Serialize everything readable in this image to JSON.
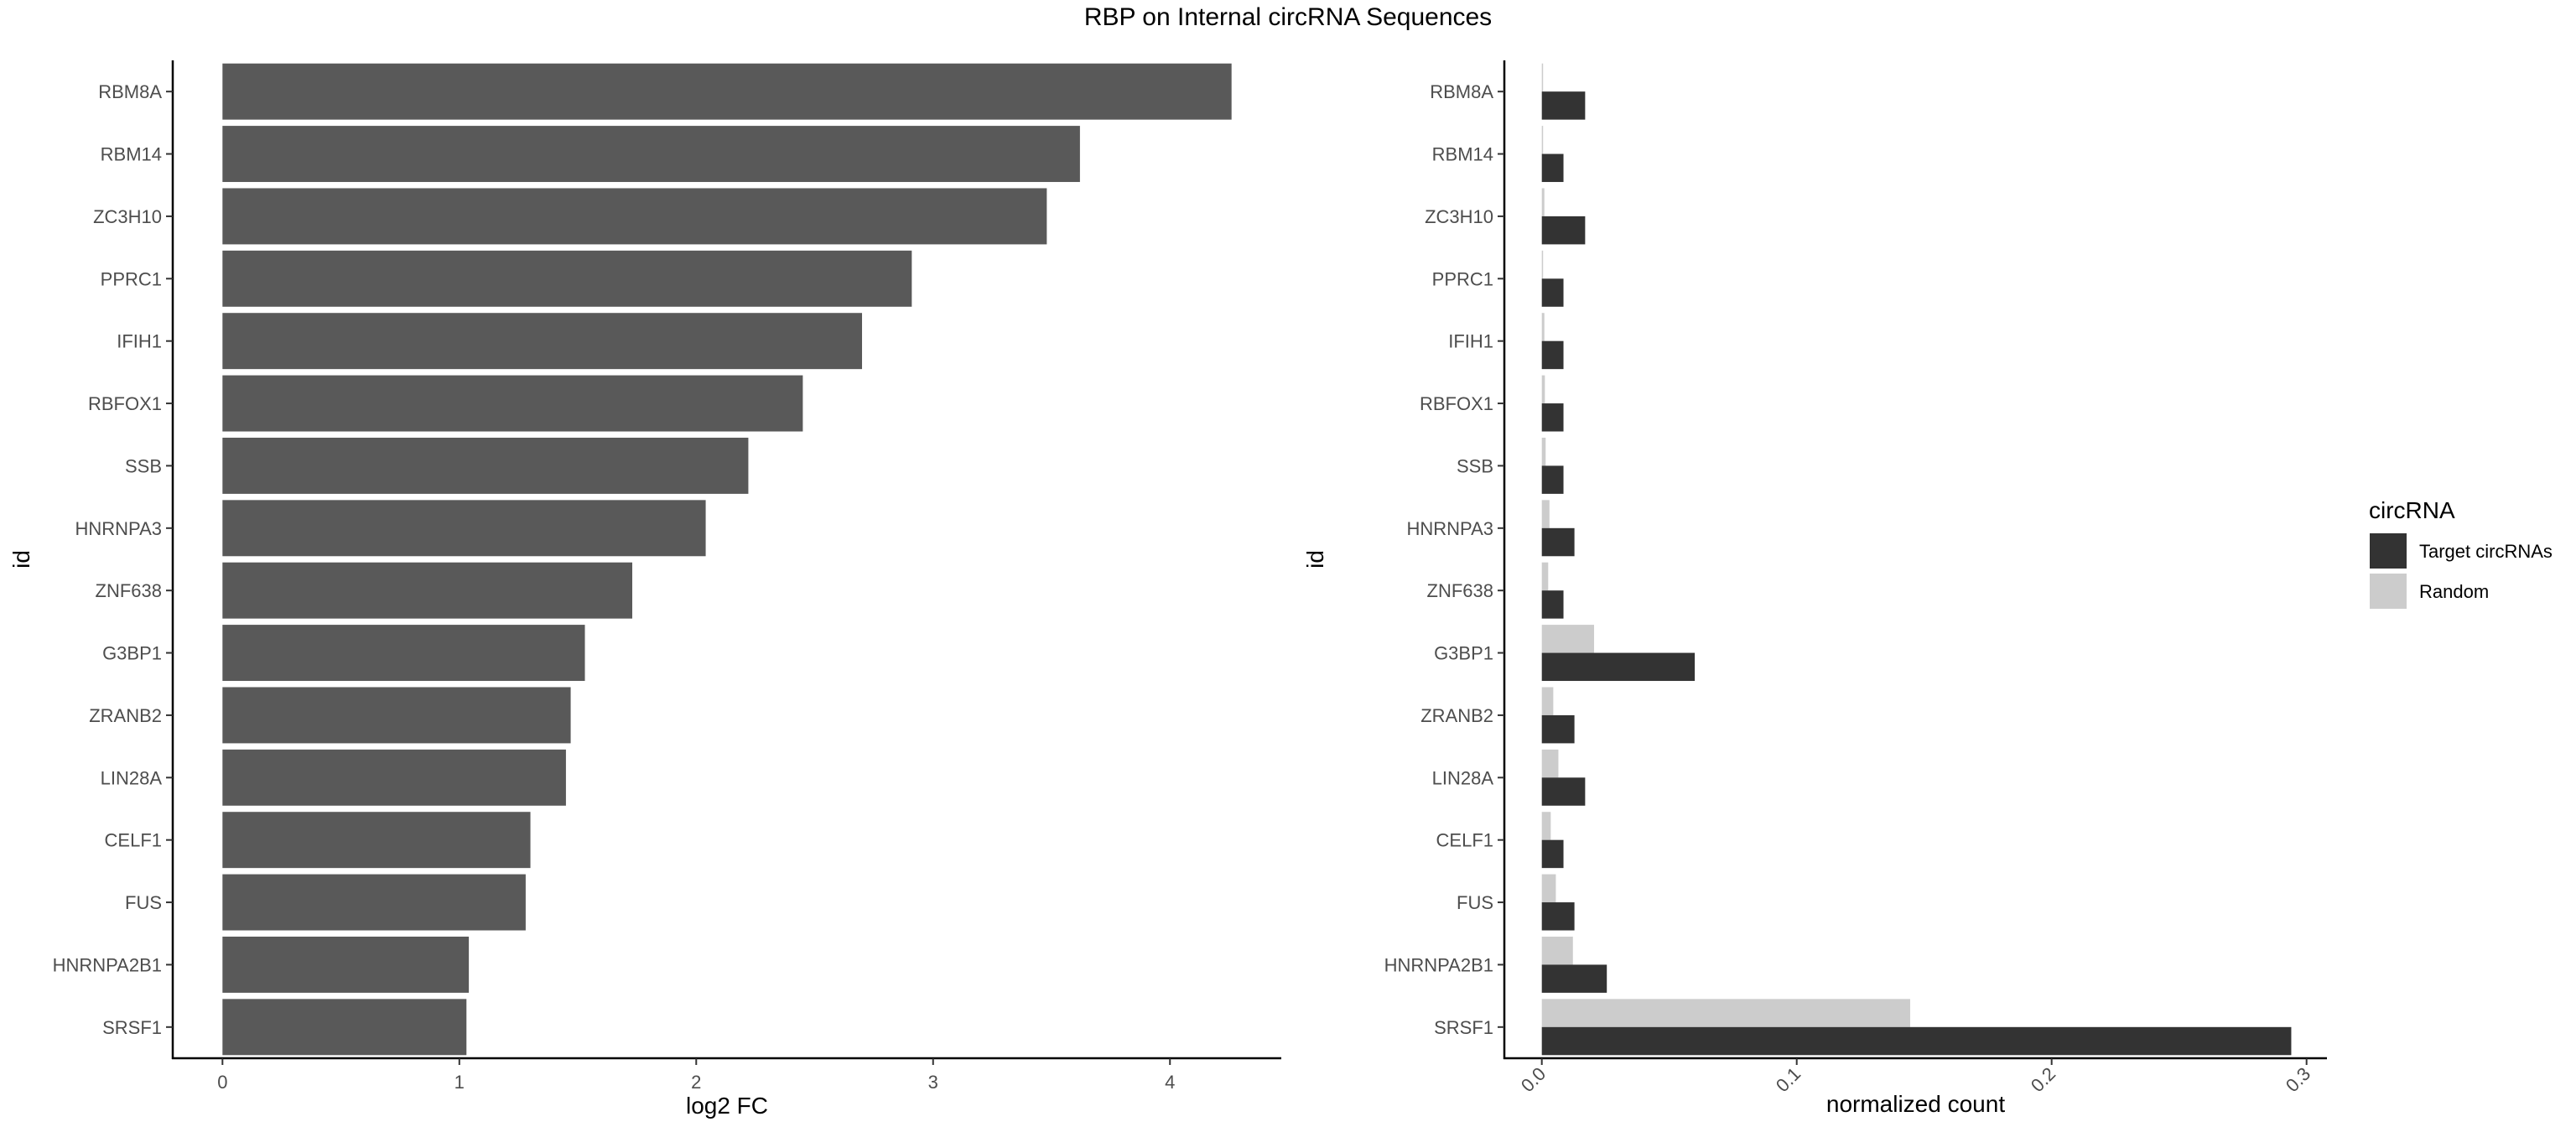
{
  "figure": {
    "title": "RBP on Internal circRNA Sequences"
  },
  "chart_data": [
    {
      "type": "bar",
      "orientation": "horizontal",
      "categories": [
        "RBM8A",
        "RBM14",
        "ZC3H10",
        "PPRC1",
        "IFIH1",
        "RBFOX1",
        "SSB",
        "HNRNPA3",
        "ZNF638",
        "G3BP1",
        "ZRANB2",
        "LIN28A",
        "CELF1",
        "FUS",
        "HNRNPA2B1",
        "SRSF1"
      ],
      "values": [
        4.26,
        3.62,
        3.48,
        2.91,
        2.7,
        2.45,
        2.22,
        2.04,
        1.73,
        1.53,
        1.47,
        1.45,
        1.3,
        1.28,
        1.04,
        1.03
      ],
      "xlabel": "log2 FC",
      "ylabel": "id",
      "xlim": [
        -0.21,
        4.47
      ],
      "xticks": [
        0,
        1,
        2,
        3,
        4
      ],
      "bar_color": "#595959",
      "grid": false
    },
    {
      "type": "bar",
      "orientation": "horizontal",
      "categories": [
        "RBM8A",
        "RBM14",
        "ZC3H10",
        "PPRC1",
        "IFIH1",
        "RBFOX1",
        "SSB",
        "HNRNPA3",
        "ZNF638",
        "G3BP1",
        "ZRANB2",
        "LIN28A",
        "CELF1",
        "FUS",
        "HNRNPA2B1",
        "SRSF1"
      ],
      "series": [
        {
          "name": "Target circRNAs",
          "color": "#333333",
          "values": [
            0.017,
            0.0085,
            0.017,
            0.0085,
            0.0085,
            0.0085,
            0.0085,
            0.0128,
            0.0085,
            0.06,
            0.0128,
            0.017,
            0.0085,
            0.0128,
            0.0255,
            0.294
          ]
        },
        {
          "name": "Random",
          "color": "#cccccc",
          "values": [
            0.0005,
            0.0005,
            0.001,
            0.0005,
            0.001,
            0.0012,
            0.0015,
            0.003,
            0.0025,
            0.0205,
            0.0045,
            0.0065,
            0.0035,
            0.0055,
            0.0122,
            0.1445
          ]
        }
      ],
      "xlabel": "normalized count",
      "ylabel": "id",
      "xlim": [
        -0.0147,
        0.308
      ],
      "xticks": [
        0.0,
        0.1,
        0.2,
        0.3
      ],
      "xtick_labels": [
        "0.0",
        "0.1",
        "0.2",
        "0.3"
      ],
      "xtick_rotation": -45,
      "grid": false,
      "legend": {
        "title": "circRNA",
        "position": "right"
      }
    }
  ]
}
